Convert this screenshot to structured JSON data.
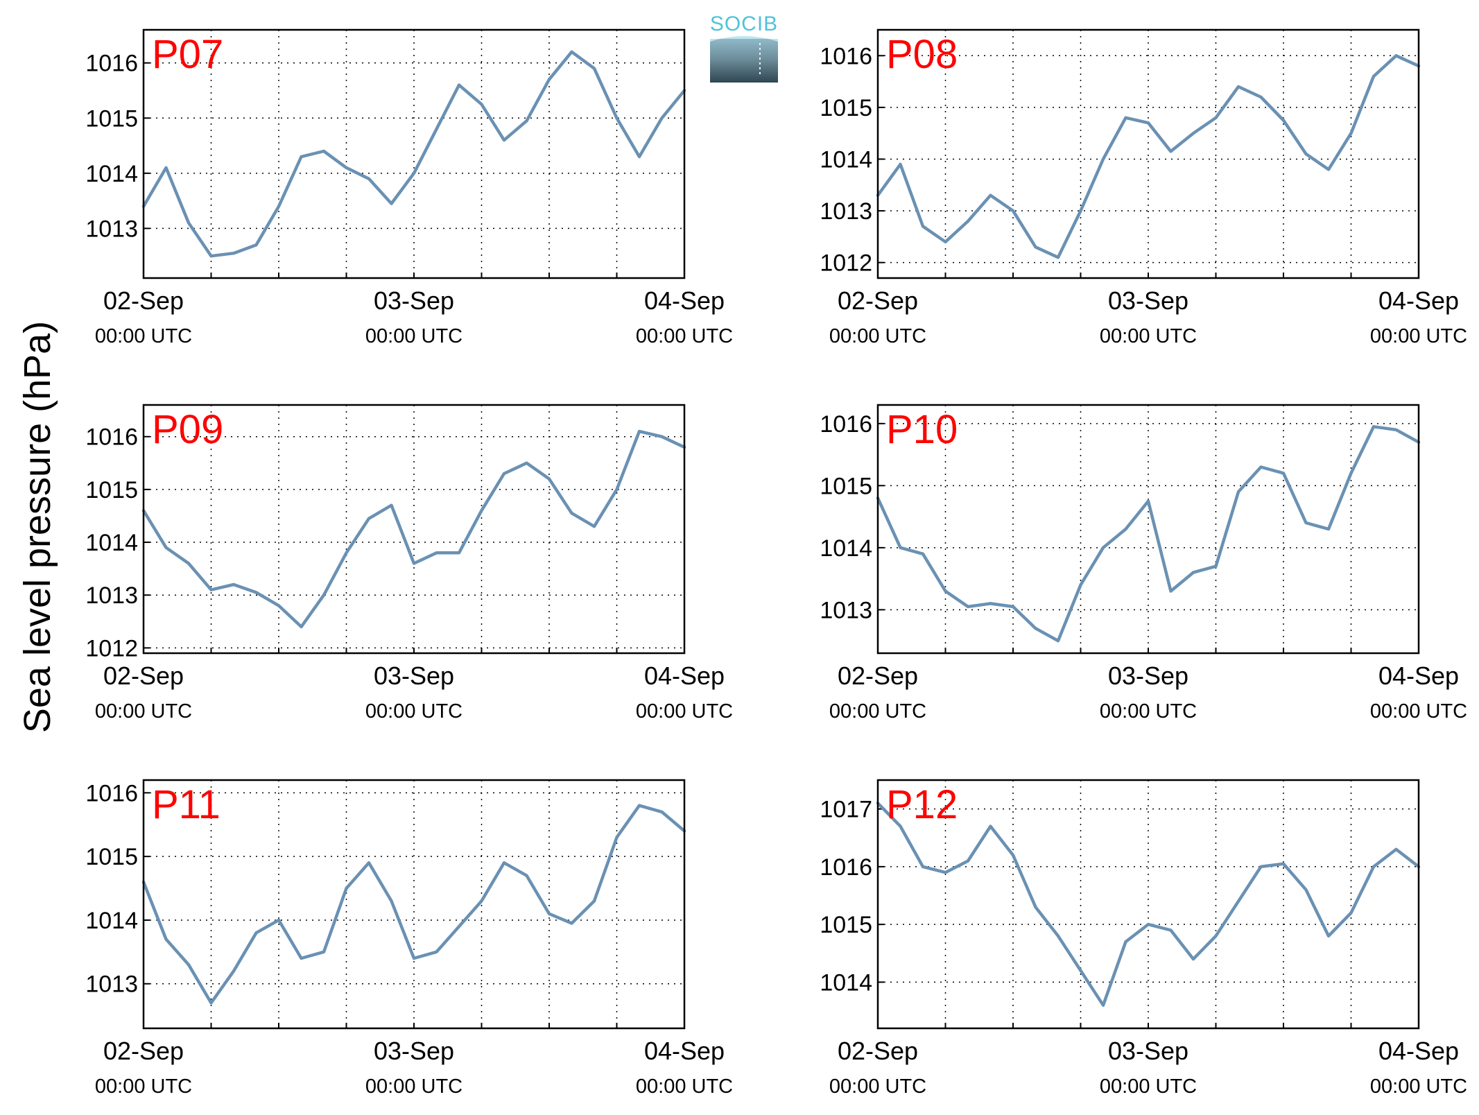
{
  "ylabel": "Sea level pressure (hPa)",
  "logo": {
    "text": "SOCIB"
  },
  "x_ticks": [
    {
      "date": "02-Sep",
      "time": "00:00 UTC"
    },
    {
      "date": "03-Sep",
      "time": "00:00 UTC"
    },
    {
      "date": "04-Sep",
      "time": "00:00 UTC"
    }
  ],
  "line_color": "#6a91b3",
  "title_color": "#ff0000",
  "chart_data": [
    {
      "type": "line",
      "title": "P07",
      "x": [
        0,
        2,
        4,
        6,
        8,
        10,
        12,
        14,
        16,
        18,
        20,
        22,
        24,
        26,
        28,
        30,
        32,
        34,
        36,
        38,
        40,
        42,
        44,
        46,
        48
      ],
      "y": [
        1013.4,
        1014.1,
        1013.1,
        1012.5,
        1012.55,
        1012.7,
        1013.4,
        1014.3,
        1014.4,
        1014.1,
        1013.9,
        1013.45,
        1014.0,
        1014.8,
        1015.6,
        1015.25,
        1014.6,
        1014.95,
        1015.7,
        1016.2,
        1015.9,
        1015.0,
        1014.3,
        1015.0,
        1015.5
      ],
      "yticks": [
        1013,
        1014,
        1015,
        1016
      ],
      "ylim": [
        1012.1,
        1016.6
      ],
      "xlim": [
        0,
        48
      ],
      "grid": true
    },
    {
      "type": "line",
      "title": "P08",
      "x": [
        0,
        2,
        4,
        6,
        8,
        10,
        12,
        14,
        16,
        18,
        20,
        22,
        24,
        26,
        28,
        30,
        32,
        34,
        36,
        38,
        40,
        42,
        44,
        46,
        48
      ],
      "y": [
        1013.3,
        1013.9,
        1012.7,
        1012.4,
        1012.8,
        1013.3,
        1013.0,
        1012.3,
        1012.1,
        1013.0,
        1014.0,
        1014.8,
        1014.7,
        1014.15,
        1014.5,
        1014.8,
        1015.4,
        1015.2,
        1014.75,
        1014.1,
        1013.8,
        1014.5,
        1015.6,
        1016.0,
        1015.8
      ],
      "yticks": [
        1012,
        1013,
        1014,
        1015,
        1016
      ],
      "ylim": [
        1011.7,
        1016.5
      ],
      "xlim": [
        0,
        48
      ],
      "grid": true
    },
    {
      "type": "line",
      "title": "P09",
      "x": [
        0,
        2,
        4,
        6,
        8,
        10,
        12,
        14,
        16,
        18,
        20,
        22,
        24,
        26,
        28,
        30,
        32,
        34,
        36,
        38,
        40,
        42,
        44,
        46,
        48
      ],
      "y": [
        1014.6,
        1013.9,
        1013.6,
        1013.1,
        1013.2,
        1013.05,
        1012.8,
        1012.4,
        1013.0,
        1013.8,
        1014.45,
        1014.7,
        1013.6,
        1013.8,
        1013.8,
        1014.6,
        1015.3,
        1015.5,
        1015.2,
        1014.55,
        1014.3,
        1015.0,
        1016.1,
        1016.0,
        1015.8
      ],
      "yticks": [
        1012,
        1013,
        1014,
        1015,
        1016
      ],
      "ylim": [
        1011.9,
        1016.6
      ],
      "xlim": [
        0,
        48
      ],
      "grid": true
    },
    {
      "type": "line",
      "title": "P10",
      "x": [
        0,
        2,
        4,
        6,
        8,
        10,
        12,
        14,
        16,
        18,
        20,
        22,
        24,
        26,
        28,
        30,
        32,
        34,
        36,
        38,
        40,
        42,
        44,
        46,
        48
      ],
      "y": [
        1014.8,
        1014.0,
        1013.9,
        1013.3,
        1013.05,
        1013.1,
        1013.05,
        1012.7,
        1012.5,
        1013.4,
        1014.0,
        1014.3,
        1014.75,
        1013.3,
        1013.6,
        1013.7,
        1014.9,
        1015.3,
        1015.2,
        1014.4,
        1014.3,
        1015.2,
        1015.95,
        1015.9,
        1015.7
      ],
      "yticks": [
        1013,
        1014,
        1015,
        1016
      ],
      "ylim": [
        1012.3,
        1016.3
      ],
      "xlim": [
        0,
        48
      ],
      "grid": true
    },
    {
      "type": "line",
      "title": "P11",
      "x": [
        0,
        2,
        4,
        6,
        8,
        10,
        12,
        14,
        16,
        18,
        20,
        22,
        24,
        26,
        28,
        30,
        32,
        34,
        36,
        38,
        40,
        42,
        44,
        46,
        48
      ],
      "y": [
        1014.6,
        1013.7,
        1013.3,
        1012.7,
        1013.2,
        1013.8,
        1014.0,
        1013.4,
        1013.5,
        1014.5,
        1014.9,
        1014.3,
        1013.4,
        1013.5,
        1013.9,
        1014.3,
        1014.9,
        1014.7,
        1014.1,
        1013.95,
        1014.3,
        1015.3,
        1015.8,
        1015.7,
        1015.4
      ],
      "yticks": [
        1013,
        1014,
        1015,
        1016
      ],
      "ylim": [
        1012.3,
        1016.2
      ],
      "xlim": [
        0,
        48
      ],
      "grid": true
    },
    {
      "type": "line",
      "title": "P12",
      "x": [
        0,
        2,
        4,
        6,
        8,
        10,
        12,
        14,
        16,
        18,
        20,
        22,
        24,
        26,
        28,
        30,
        32,
        34,
        36,
        38,
        40,
        42,
        44,
        46,
        48
      ],
      "y": [
        1017.1,
        1016.7,
        1016.0,
        1015.9,
        1016.1,
        1016.7,
        1016.2,
        1015.3,
        1014.8,
        1014.2,
        1013.6,
        1014.7,
        1015.0,
        1014.9,
        1014.4,
        1014.8,
        1015.4,
        1016.0,
        1016.05,
        1015.6,
        1014.8,
        1015.2,
        1016.0,
        1016.3,
        1016.0
      ],
      "yticks": [
        1014,
        1015,
        1016,
        1017
      ],
      "ylim": [
        1013.2,
        1017.5
      ],
      "xlim": [
        0,
        48
      ],
      "grid": true
    }
  ]
}
